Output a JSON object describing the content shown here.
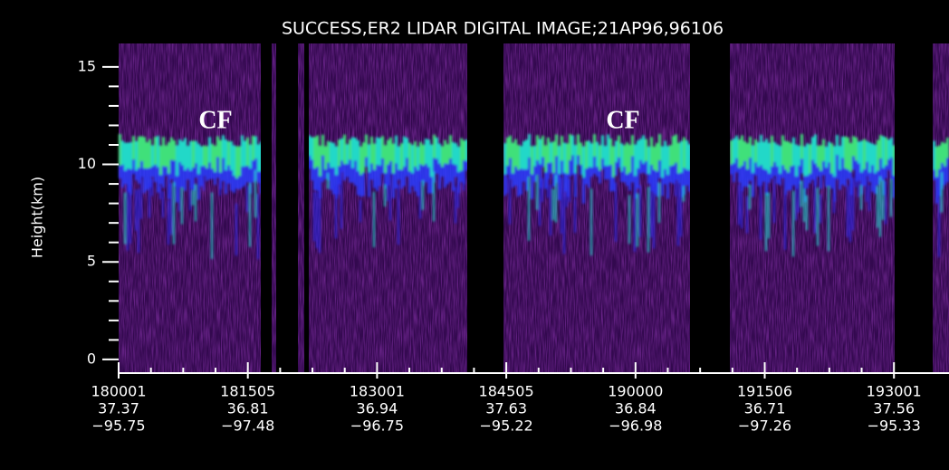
{
  "chart_data": {
    "type": "lidar-image",
    "title": "SUCCESS,ER2 LIDAR DIGITAL IMAGE;21AP96,96106",
    "y_label": "Height(km)",
    "ylim": [
      -0.7,
      16.2
    ],
    "yticks": [
      0,
      5,
      10,
      15
    ],
    "minor_yticks": [
      1,
      2,
      3,
      4,
      6,
      7,
      8,
      9,
      11,
      12,
      13,
      14
    ],
    "x_labels": [
      {
        "time": "180001",
        "latitude": "37.37",
        "longitude": "−95.75"
      },
      {
        "time": "181505",
        "latitude": "36.81",
        "longitude": "−97.48"
      },
      {
        "time": "183001",
        "latitude": "36.94",
        "longitude": "−96.75"
      },
      {
        "time": "184505",
        "latitude": "37.63",
        "longitude": "−95.22"
      },
      {
        "time": "190000",
        "latitude": "36.84",
        "longitude": "−96.98"
      },
      {
        "time": "191506",
        "latitude": "36.71",
        "longitude": "−97.26"
      },
      {
        "time": "193001",
        "latitude": "37.56",
        "longitude": "−95.33"
      }
    ],
    "annotations": [
      "CF",
      "CF"
    ]
  }
}
